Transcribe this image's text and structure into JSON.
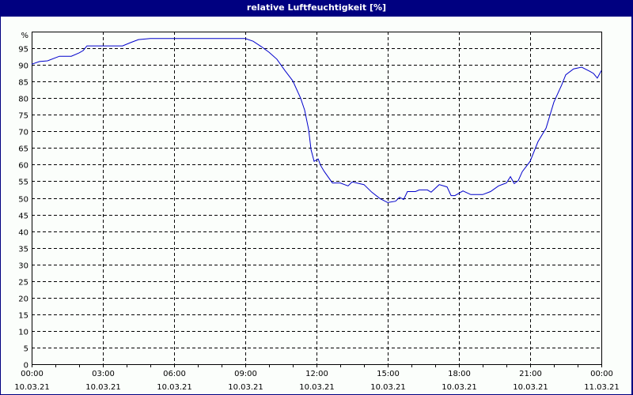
{
  "window": {
    "title": "relative Luftfeuchtigkeit [%]"
  },
  "colors": {
    "frame": "#000080",
    "background": "#fbfefb",
    "line": "#0000cc",
    "grid": "#000000"
  },
  "chart_data": {
    "type": "line",
    "title": "relative Luftfeuchtigkeit [%]",
    "xlabel": "",
    "ylabel": "%",
    "ylim": [
      0,
      100
    ],
    "y_ticks": [
      0,
      5,
      10,
      15,
      20,
      25,
      30,
      35,
      40,
      45,
      50,
      55,
      60,
      65,
      70,
      75,
      80,
      85,
      90,
      95
    ],
    "y_top_label": "%",
    "x_ticks": [
      {
        "time": "00:00",
        "date": "10.03.21"
      },
      {
        "time": "03:00",
        "date": "10.03.21"
      },
      {
        "time": "06:00",
        "date": "10.03.21"
      },
      {
        "time": "09:00",
        "date": "10.03.21"
      },
      {
        "time": "12:00",
        "date": "10.03.21"
      },
      {
        "time": "15:00",
        "date": "10.03.21"
      },
      {
        "time": "18:00",
        "date": "10.03.21"
      },
      {
        "time": "21:00",
        "date": "10.03.21"
      },
      {
        "time": "00:00",
        "date": "11.03.21"
      }
    ],
    "grid": true,
    "legend": null,
    "series": [
      {
        "name": "relative Luftfeuchtigkeit",
        "x_hours": [
          0,
          0.33,
          0.67,
          1.17,
          1.67,
          2,
          2.17,
          2.33,
          3,
          3.83,
          4.17,
          4.5,
          5,
          9,
          9.33,
          9.67,
          10,
          10.33,
          10.67,
          11,
          11.33,
          11.5,
          11.67,
          11.77,
          11.9,
          12.07,
          12.17,
          12.33,
          12.67,
          13,
          13.33,
          13.5,
          14,
          14.33,
          14.67,
          15,
          15.33,
          15.5,
          15.67,
          15.83,
          16.17,
          16.33,
          16.67,
          16.83,
          17.17,
          17.5,
          17.67,
          17.83,
          18.17,
          18.5,
          19,
          19.33,
          19.67,
          20,
          20.17,
          20.33,
          20.5,
          20.67,
          21,
          21.33,
          21.67,
          22,
          22.33,
          22.5,
          22.83,
          23.17,
          23.5,
          23.67,
          23.83,
          24
        ],
        "values": [
          90.2,
          91,
          91.2,
          92.6,
          92.6,
          93.6,
          94.3,
          95.7,
          95.7,
          95.7,
          96.7,
          97.6,
          97.9,
          97.9,
          97.1,
          95.5,
          93.8,
          91.7,
          88.3,
          85.2,
          80,
          76.4,
          70.5,
          64.5,
          61,
          61.7,
          59.8,
          57.9,
          54.5,
          54.5,
          53.6,
          54.8,
          54,
          51.7,
          49.8,
          48.6,
          49,
          50.2,
          49.5,
          51.9,
          51.9,
          52.4,
          52.4,
          51.7,
          54,
          53.3,
          50.7,
          50.7,
          52.1,
          51,
          51,
          51.9,
          53.6,
          54.5,
          56.4,
          54.3,
          55.2,
          57.9,
          61,
          66.9,
          70.95,
          78.8,
          84,
          87,
          88.8,
          89.3,
          88.1,
          87.4,
          86,
          88.3
        ]
      }
    ]
  }
}
